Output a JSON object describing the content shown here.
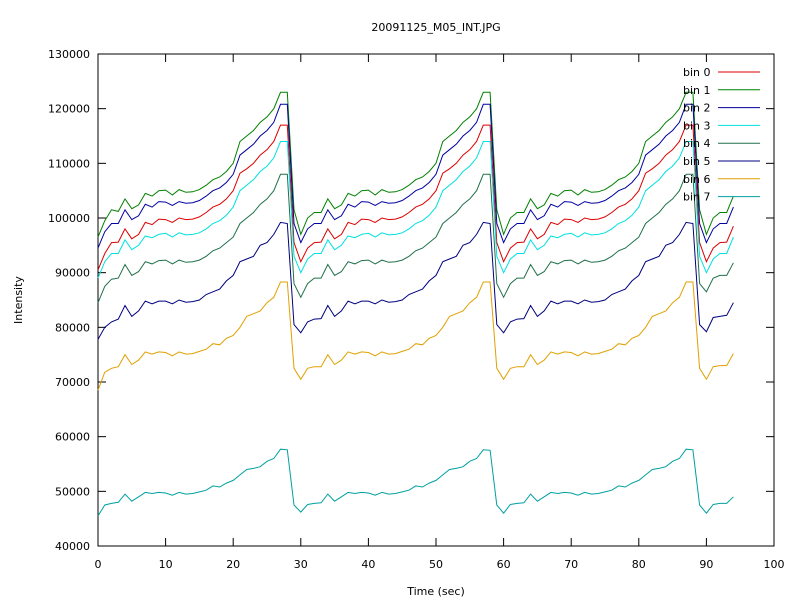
{
  "chart_data": {
    "type": "line",
    "title": "20091125_M05_INT.JPG",
    "xlabel": "Time (sec)",
    "ylabel": "Intensity",
    "xlim": [
      0,
      100
    ],
    "ylim": [
      40000,
      130000
    ],
    "xticks": [
      0,
      10,
      20,
      30,
      40,
      50,
      60,
      70,
      80,
      90,
      100
    ],
    "yticks": [
      40000,
      50000,
      60000,
      70000,
      80000,
      90000,
      100000,
      110000,
      120000,
      130000
    ],
    "grid": false,
    "legend_position": "top-right",
    "x": [
      0,
      1,
      2,
      3,
      4,
      5,
      6,
      7,
      8,
      9,
      10,
      11,
      12,
      13,
      14,
      15,
      16,
      17,
      18,
      19,
      20,
      21,
      22,
      23,
      24,
      25,
      26,
      27,
      28,
      29,
      30,
      31,
      32,
      33,
      34,
      35,
      36,
      37,
      38,
      39,
      40,
      41,
      42,
      43,
      44,
      45,
      46,
      47,
      48,
      49,
      50,
      51,
      52,
      53,
      54,
      55,
      56,
      57,
      58,
      59,
      60,
      61,
      62,
      63,
      64,
      65,
      66,
      67,
      68,
      69,
      70,
      71,
      72,
      73,
      74,
      75,
      76,
      77,
      78,
      79,
      80,
      81,
      82,
      83,
      84,
      85,
      86,
      87,
      88,
      89,
      90,
      91,
      92,
      93,
      94
    ],
    "series": [
      {
        "name": "bin 0",
        "color": "#dd0000",
        "values": [
          90500,
          93500,
          95500,
          95600,
          98000,
          96200,
          97000,
          99200,
          98800,
          99800,
          99700,
          99200,
          100000,
          99700,
          99800,
          100200,
          101000,
          102000,
          102500,
          103500,
          105000,
          108200,
          109000,
          110000,
          111500,
          112500,
          114000,
          117000,
          117000,
          95500,
          92000,
          94500,
          95500,
          95600,
          98000,
          96200,
          97000,
          99200,
          98800,
          99800,
          99700,
          99200,
          100000,
          99700,
          99800,
          100200,
          101000,
          102000,
          102500,
          103500,
          105000,
          108200,
          109000,
          110000,
          111500,
          112500,
          114000,
          117000,
          117000,
          95500,
          92000,
          94500,
          95500,
          95600,
          98000,
          96200,
          97000,
          99200,
          98800,
          99800,
          99700,
          99200,
          100000,
          99700,
          99800,
          100200,
          101000,
          102000,
          102500,
          103500,
          105000,
          108200,
          109000,
          110000,
          111500,
          112500,
          114000,
          117000,
          117000,
          95500,
          92000,
          94500,
          95500,
          95600,
          98500
        ]
      },
      {
        "name": "bin 1",
        "color": "#008000",
        "values": [
          96500,
          99500,
          101500,
          101200,
          103500,
          101700,
          102400,
          104500,
          104000,
          105000,
          105100,
          104200,
          105200,
          104700,
          104800,
          105200,
          106000,
          107000,
          107500,
          108500,
          110000,
          114000,
          115000,
          116000,
          117500,
          118500,
          120000,
          123000,
          123000,
          101500,
          97000,
          100000,
          101000,
          101000,
          103500,
          101700,
          102400,
          104500,
          104000,
          105000,
          105100,
          104200,
          105200,
          104700,
          104800,
          105200,
          106000,
          107000,
          107500,
          108500,
          110000,
          114000,
          115000,
          116000,
          117500,
          118500,
          120000,
          123000,
          123000,
          101500,
          97000,
          100000,
          101000,
          101000,
          103500,
          101700,
          102400,
          104500,
          104000,
          105000,
          105100,
          104200,
          105200,
          104700,
          104800,
          105200,
          106000,
          107000,
          107500,
          108500,
          110000,
          114000,
          115000,
          116000,
          117500,
          118500,
          120000,
          123000,
          123000,
          101500,
          97000,
          100000,
          101000,
          101000,
          104000
        ]
      },
      {
        "name": "bin 2",
        "color": "#0000a0",
        "values": [
          94500,
          97500,
          99000,
          99000,
          101500,
          99700,
          100400,
          102500,
          102000,
          103000,
          102900,
          102300,
          103000,
          102700,
          102800,
          103200,
          104000,
          105000,
          105500,
          106500,
          108000,
          111500,
          112500,
          113500,
          115000,
          116000,
          117500,
          120800,
          120800,
          99000,
          95500,
          98000,
          99000,
          99000,
          101500,
          99700,
          100400,
          102500,
          102000,
          103000,
          102900,
          102300,
          103000,
          102700,
          102800,
          103200,
          104000,
          105000,
          105500,
          106500,
          108000,
          111500,
          112500,
          113500,
          115000,
          116000,
          117500,
          120800,
          120800,
          99000,
          95500,
          98000,
          99000,
          99000,
          101500,
          99700,
          100400,
          102500,
          102000,
          103000,
          102900,
          102300,
          103000,
          102700,
          102800,
          103200,
          104000,
          105000,
          105500,
          106500,
          108000,
          111500,
          112500,
          113500,
          115000,
          116000,
          117500,
          120800,
          120800,
          99000,
          95500,
          98000,
          99000,
          99000,
          102000
        ]
      },
      {
        "name": "bin 3",
        "color": "#00e0e0",
        "values": [
          89000,
          92000,
          93500,
          93500,
          96000,
          94200,
          95000,
          96700,
          96400,
          97000,
          97200,
          96500,
          97300,
          96900,
          97000,
          97300,
          98000,
          99000,
          99500,
          100500,
          102000,
          105000,
          106000,
          107000,
          108500,
          109500,
          111000,
          114000,
          114000,
          93000,
          90000,
          92500,
          93500,
          93500,
          96000,
          94200,
          95000,
          96700,
          96400,
          97000,
          97200,
          96500,
          97300,
          96900,
          97000,
          97300,
          98000,
          99000,
          99500,
          100500,
          102000,
          105000,
          106000,
          107000,
          108500,
          109500,
          111000,
          114000,
          114000,
          93000,
          90000,
          92500,
          93500,
          93500,
          96000,
          94200,
          95000,
          96700,
          96400,
          97000,
          97200,
          96500,
          97300,
          96900,
          97000,
          97300,
          98000,
          99000,
          99500,
          100500,
          102000,
          105000,
          106000,
          107000,
          108500,
          109500,
          111000,
          114000,
          114000,
          93000,
          90000,
          92500,
          93500,
          93500,
          96500
        ]
      },
      {
        "name": "bin 4",
        "color": "#20704a",
        "values": [
          84500,
          87500,
          88800,
          89000,
          91500,
          89500,
          90200,
          92000,
          91600,
          92200,
          92300,
          91600,
          92300,
          91900,
          92000,
          92300,
          93000,
          94000,
          94500,
          95500,
          96500,
          99000,
          100000,
          101000,
          102500,
          103500,
          105000,
          108000,
          108000,
          88000,
          85500,
          88000,
          89000,
          89000,
          91500,
          89500,
          90200,
          92000,
          91600,
          92200,
          92300,
          91600,
          92300,
          91900,
          92000,
          92300,
          93000,
          94000,
          94500,
          95500,
          96500,
          99000,
          100000,
          101000,
          102500,
          103500,
          105000,
          108000,
          108000,
          88000,
          85500,
          88000,
          89000,
          89000,
          91500,
          89500,
          90200,
          92000,
          91600,
          92200,
          92300,
          91600,
          92300,
          91900,
          92000,
          92300,
          93000,
          94000,
          94500,
          95500,
          96500,
          99000,
          100000,
          101000,
          102500,
          103500,
          105000,
          108000,
          108000,
          88000,
          86500,
          89000,
          89500,
          89500,
          91800
        ]
      },
      {
        "name": "bin 5",
        "color": "#000080",
        "values": [
          77800,
          80000,
          81000,
          81500,
          84000,
          82000,
          83000,
          84800,
          84300,
          84800,
          84800,
          84300,
          85000,
          84600,
          84700,
          85000,
          86000,
          86500,
          87000,
          88500,
          89500,
          92000,
          92500,
          93000,
          95000,
          95500,
          97000,
          99200,
          99000,
          80500,
          79000,
          81000,
          81500,
          81600,
          84000,
          82000,
          83000,
          84800,
          84300,
          84800,
          84800,
          84300,
          85000,
          84600,
          84700,
          85000,
          86000,
          86500,
          87000,
          88500,
          89500,
          92000,
          92500,
          93000,
          95000,
          95500,
          97000,
          99200,
          99000,
          80500,
          79000,
          81000,
          81500,
          81600,
          84000,
          82000,
          83000,
          84800,
          84300,
          84800,
          84800,
          84300,
          85000,
          84600,
          84700,
          85000,
          86000,
          86500,
          87000,
          88500,
          89500,
          92000,
          92500,
          93000,
          95000,
          95500,
          97000,
          99200,
          99000,
          80500,
          79200,
          81800,
          82000,
          82200,
          84500
        ]
      },
      {
        "name": "bin 6",
        "color": "#e0a000",
        "values": [
          68500,
          71800,
          72500,
          72800,
          75000,
          73200,
          74000,
          75500,
          75100,
          75500,
          75400,
          74800,
          75500,
          75100,
          75200,
          75600,
          76000,
          77000,
          76800,
          78000,
          78500,
          80000,
          82000,
          82500,
          83000,
          84500,
          85500,
          88300,
          88300,
          72500,
          70500,
          72500,
          72800,
          72800,
          75000,
          73200,
          74000,
          75500,
          75100,
          75500,
          75400,
          74800,
          75500,
          75100,
          75200,
          75600,
          76000,
          77000,
          76800,
          78000,
          78500,
          80000,
          82000,
          82500,
          83000,
          84500,
          85500,
          88300,
          88300,
          72500,
          70500,
          72500,
          72800,
          72800,
          75000,
          73200,
          74000,
          75500,
          75100,
          75500,
          75400,
          74800,
          75500,
          75100,
          75200,
          75600,
          76000,
          77000,
          76800,
          78000,
          78500,
          80000,
          82000,
          82500,
          83000,
          84500,
          85500,
          88300,
          88300,
          72500,
          70500,
          72800,
          73000,
          73000,
          75200
        ]
      },
      {
        "name": "bin 7",
        "color": "#00a0a0",
        "values": [
          45500,
          47500,
          47800,
          48000,
          49500,
          48200,
          49000,
          49800,
          49600,
          49800,
          49700,
          49300,
          49800,
          49500,
          49600,
          49900,
          50200,
          51000,
          50800,
          51500,
          52000,
          53000,
          54000,
          54200,
          54500,
          55500,
          56000,
          57700,
          57600,
          47500,
          46200,
          47600,
          47800,
          47900,
          49500,
          48200,
          49000,
          49800,
          49600,
          49800,
          49700,
          49300,
          49800,
          49500,
          49600,
          49900,
          50200,
          51000,
          50800,
          51500,
          52000,
          53000,
          54000,
          54200,
          54500,
          55500,
          56000,
          57600,
          57500,
          47500,
          46000,
          47600,
          47800,
          47900,
          49500,
          48200,
          49000,
          49800,
          49600,
          49800,
          49700,
          49300,
          49800,
          49500,
          49600,
          49900,
          50200,
          51000,
          50800,
          51500,
          52000,
          53000,
          54000,
          54200,
          54500,
          55500,
          56000,
          57700,
          57600,
          47500,
          46000,
          47600,
          47800,
          47800,
          49000
        ]
      }
    ]
  }
}
